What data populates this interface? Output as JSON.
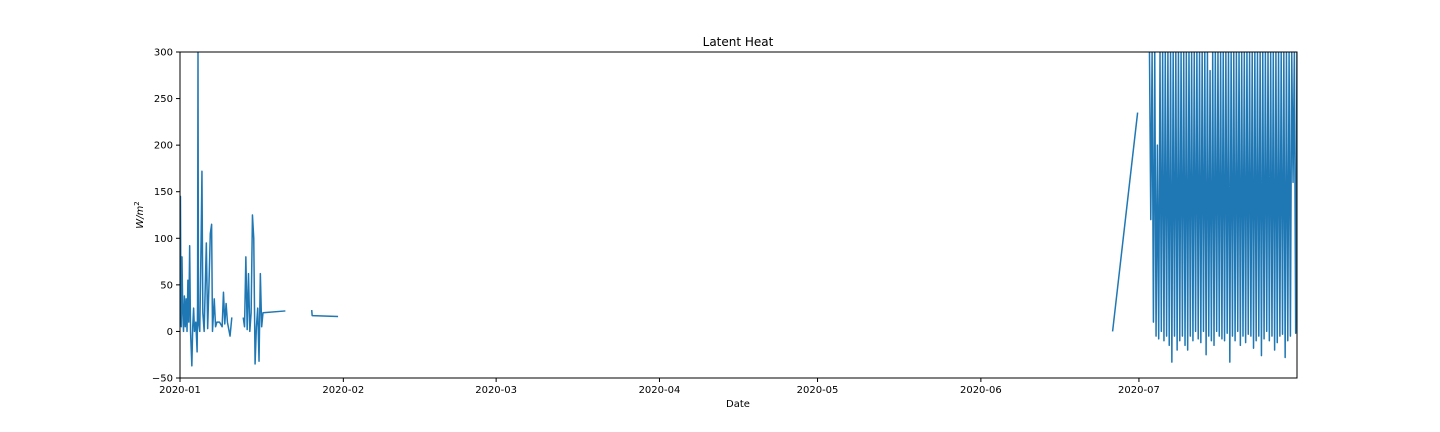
{
  "chart_data": {
    "type": "line",
    "title": "Latent Heat",
    "xlabel": "Date",
    "ylabel_main": "W/m",
    "ylabel_exp": "2",
    "ylim": [
      -50,
      300
    ],
    "xlim": [
      "2020-01-01",
      "2020-07-31"
    ],
    "grid": false,
    "legend": "none",
    "line_color": "#1f77b4",
    "y_ticks": [
      -50,
      0,
      50,
      100,
      150,
      200,
      250,
      300
    ],
    "y_tick_labels": [
      "−50",
      "0",
      "50",
      "100",
      "150",
      "200",
      "250",
      "300"
    ],
    "x_ticks": [
      "2020-01",
      "2020-02",
      "2020-03",
      "2020-04",
      "2020-05",
      "2020-06",
      "2020-07"
    ],
    "series": [
      {
        "values": [
          [
            "2020-01-01T00:00",
            20
          ],
          [
            "2020-01-01T02:00",
            145
          ],
          [
            "2020-01-01T04:00",
            40
          ],
          [
            "2020-01-01T06:00",
            5
          ],
          [
            "2020-01-01T09:00",
            80
          ],
          [
            "2020-01-01T12:00",
            30
          ],
          [
            "2020-01-01T16:00",
            0
          ],
          [
            "2020-01-01T20:00",
            38
          ],
          [
            "2020-01-02T00:00",
            5
          ],
          [
            "2020-01-02T04:00",
            35
          ],
          [
            "2020-01-02T08:00",
            0
          ],
          [
            "2020-01-02T12:00",
            55
          ],
          [
            "2020-01-02T16:00",
            10
          ],
          [
            "2020-01-02T20:00",
            92
          ],
          [
            "2020-01-03T00:00",
            0
          ],
          [
            "2020-01-03T06:00",
            -37
          ],
          [
            "2020-01-03T10:00",
            5
          ],
          [
            "2020-01-03T14:00",
            25
          ],
          [
            "2020-01-03T18:00",
            0
          ],
          [
            "2020-01-04T00:00",
            10
          ],
          [
            "2020-01-04T06:00",
            -22
          ],
          [
            "2020-01-04T08:00",
            30
          ],
          [
            "2020-01-04T10:00",
            300
          ],
          [
            "2020-01-04T12:00",
            10
          ],
          [
            "2020-01-04T18:00",
            0
          ],
          [
            "2020-01-05T00:00",
            95
          ],
          [
            "2020-01-05T04:00",
            172
          ],
          [
            "2020-01-05T08:00",
            20
          ],
          [
            "2020-01-05T14:00",
            0
          ],
          [
            "2020-01-06T00:00",
            95
          ],
          [
            "2020-01-06T06:00",
            3
          ],
          [
            "2020-01-06T12:00",
            50
          ],
          [
            "2020-01-06T18:00",
            105
          ],
          [
            "2020-01-07T00:00",
            115
          ],
          [
            "2020-01-07T04:00",
            0
          ],
          [
            "2020-01-07T12:00",
            35
          ],
          [
            "2020-01-07T18:00",
            5
          ],
          [
            "2020-01-08T00:00",
            10
          ],
          [
            "2020-01-08T12:00",
            10
          ],
          [
            "2020-01-09T00:00",
            5
          ],
          [
            "2020-01-09T06:00",
            42
          ],
          [
            "2020-01-09T12:00",
            8
          ],
          [
            "2020-01-09T18:00",
            30
          ],
          [
            "2020-01-10T00:00",
            10
          ],
          [
            "2020-01-10T12:00",
            -5
          ],
          [
            "2020-01-10T20:00",
            15
          ],
          null,
          [
            "2020-01-13T00:00",
            15
          ],
          [
            "2020-01-13T06:00",
            5
          ],
          [
            "2020-01-13T12:00",
            80
          ],
          [
            "2020-01-13T18:00",
            2
          ],
          [
            "2020-01-14T00:00",
            62
          ],
          [
            "2020-01-14T06:00",
            0
          ],
          [
            "2020-01-14T12:00",
            20
          ],
          [
            "2020-01-14T18:00",
            125
          ],
          [
            "2020-01-15T00:00",
            100
          ],
          [
            "2020-01-15T06:00",
            -35
          ],
          [
            "2020-01-15T12:00",
            5
          ],
          [
            "2020-01-15T18:00",
            25
          ],
          [
            "2020-01-16T00:00",
            -32
          ],
          [
            "2020-01-16T06:00",
            62
          ],
          [
            "2020-01-16T12:00",
            5
          ],
          [
            "2020-01-16T18:00",
            20
          ],
          [
            "2020-01-21T00:00",
            22
          ],
          null,
          [
            "2020-01-26T00:00",
            23
          ],
          [
            "2020-01-26T02:00",
            17
          ],
          [
            "2020-01-31T00:00",
            16
          ],
          null,
          [
            "2020-06-26T00:00",
            0
          ],
          [
            "2020-06-30T18:00",
            235
          ],
          null,
          [
            "2020-07-03T00:00",
            300
          ],
          [
            "2020-07-03T06:00",
            120
          ],
          [
            "2020-07-03T12:00",
            300
          ],
          [
            "2020-07-03T18:00",
            10
          ],
          [
            "2020-07-04T00:00",
            300
          ],
          [
            "2020-07-04T06:00",
            -5
          ],
          [
            "2020-07-04T12:00",
            200
          ],
          [
            "2020-07-04T18:00",
            -8
          ],
          [
            "2020-07-05T00:00",
            300
          ],
          [
            "2020-07-05T06:00",
            0
          ],
          [
            "2020-07-05T12:00",
            300
          ],
          [
            "2020-07-05T18:00",
            -10
          ],
          [
            "2020-07-06T00:00",
            300
          ],
          [
            "2020-07-06T06:00",
            -5
          ],
          [
            "2020-07-06T12:00",
            300
          ],
          [
            "2020-07-06T18:00",
            -15
          ],
          [
            "2020-07-07T00:00",
            300
          ],
          [
            "2020-07-07T06:00",
            -33
          ],
          [
            "2020-07-07T12:00",
            300
          ],
          [
            "2020-07-07T18:00",
            -5
          ],
          [
            "2020-07-08T00:00",
            300
          ],
          [
            "2020-07-08T06:00",
            -20
          ],
          [
            "2020-07-08T12:00",
            300
          ],
          [
            "2020-07-08T18:00",
            -10
          ],
          [
            "2020-07-09T00:00",
            300
          ],
          [
            "2020-07-09T06:00",
            -5
          ],
          [
            "2020-07-09T12:00",
            300
          ],
          [
            "2020-07-09T18:00",
            -15
          ],
          [
            "2020-07-10T00:00",
            300
          ],
          [
            "2020-07-10T06:00",
            -20
          ],
          [
            "2020-07-10T12:00",
            300
          ],
          [
            "2020-07-10T18:00",
            -5
          ],
          [
            "2020-07-11T00:00",
            300
          ],
          [
            "2020-07-11T06:00",
            -10
          ],
          [
            "2020-07-11T12:00",
            300
          ],
          [
            "2020-07-11T18:00",
            0
          ],
          [
            "2020-07-12T00:00",
            300
          ],
          [
            "2020-07-12T06:00",
            -8
          ],
          [
            "2020-07-12T12:00",
            300
          ],
          [
            "2020-07-12T18:00",
            -12
          ],
          [
            "2020-07-13T00:00",
            300
          ],
          [
            "2020-07-13T06:00",
            0
          ],
          [
            "2020-07-13T12:00",
            300
          ],
          [
            "2020-07-13T18:00",
            -25
          ],
          [
            "2020-07-14T00:00",
            300
          ],
          [
            "2020-07-14T06:00",
            -5
          ],
          [
            "2020-07-14T12:00",
            280
          ],
          [
            "2020-07-14T18:00",
            -10
          ],
          [
            "2020-07-15T00:00",
            300
          ],
          [
            "2020-07-15T06:00",
            -15
          ],
          [
            "2020-07-15T12:00",
            300
          ],
          [
            "2020-07-15T18:00",
            0
          ],
          [
            "2020-07-16T00:00",
            300
          ],
          [
            "2020-07-16T06:00",
            -5
          ],
          [
            "2020-07-16T12:00",
            300
          ],
          [
            "2020-07-16T18:00",
            -8
          ],
          [
            "2020-07-17T00:00",
            300
          ],
          [
            "2020-07-17T06:00",
            -10
          ],
          [
            "2020-07-17T12:00",
            300
          ],
          [
            "2020-07-17T18:00",
            -2
          ],
          [
            "2020-07-18T00:00",
            300
          ],
          [
            "2020-07-18T06:00",
            -33
          ],
          [
            "2020-07-18T12:00",
            300
          ],
          [
            "2020-07-18T18:00",
            -5
          ],
          [
            "2020-07-19T00:00",
            300
          ],
          [
            "2020-07-19T06:00",
            -10
          ],
          [
            "2020-07-19T12:00",
            300
          ],
          [
            "2020-07-19T18:00",
            0
          ],
          [
            "2020-07-20T00:00",
            300
          ],
          [
            "2020-07-20T06:00",
            -15
          ],
          [
            "2020-07-20T12:00",
            300
          ],
          [
            "2020-07-20T18:00",
            -5
          ],
          [
            "2020-07-21T00:00",
            300
          ],
          [
            "2020-07-21T06:00",
            -12
          ],
          [
            "2020-07-21T12:00",
            300
          ],
          [
            "2020-07-21T18:00",
            -3
          ],
          [
            "2020-07-22T00:00",
            300
          ],
          [
            "2020-07-22T06:00",
            -5
          ],
          [
            "2020-07-22T12:00",
            300
          ],
          [
            "2020-07-22T18:00",
            -18
          ],
          [
            "2020-07-23T00:00",
            300
          ],
          [
            "2020-07-23T06:00",
            -10
          ],
          [
            "2020-07-23T12:00",
            300
          ],
          [
            "2020-07-23T18:00",
            -5
          ],
          [
            "2020-07-24T00:00",
            300
          ],
          [
            "2020-07-24T06:00",
            -26
          ],
          [
            "2020-07-24T12:00",
            300
          ],
          [
            "2020-07-24T18:00",
            -8
          ],
          [
            "2020-07-25T00:00",
            300
          ],
          [
            "2020-07-25T06:00",
            0
          ],
          [
            "2020-07-25T12:00",
            300
          ],
          [
            "2020-07-25T18:00",
            -10
          ],
          [
            "2020-07-26T00:00",
            300
          ],
          [
            "2020-07-26T06:00",
            -5
          ],
          [
            "2020-07-26T12:00",
            300
          ],
          [
            "2020-07-26T18:00",
            -20
          ],
          [
            "2020-07-27T00:00",
            300
          ],
          [
            "2020-07-27T06:00",
            -12
          ],
          [
            "2020-07-27T12:00",
            300
          ],
          [
            "2020-07-27T18:00",
            -5
          ],
          [
            "2020-07-28T00:00",
            300
          ],
          [
            "2020-07-28T06:00",
            -3
          ],
          [
            "2020-07-28T12:00",
            300
          ],
          [
            "2020-07-28T18:00",
            -28
          ],
          [
            "2020-07-29T00:00",
            300
          ],
          [
            "2020-07-29T06:00",
            -10
          ],
          [
            "2020-07-29T12:00",
            300
          ],
          [
            "2020-07-29T18:00",
            -5
          ],
          [
            "2020-07-30T00:00",
            300
          ],
          [
            "2020-07-30T06:00",
            160
          ],
          [
            "2020-07-30T12:00",
            300
          ],
          [
            "2020-07-30T18:00",
            -2
          ],
          [
            "2020-07-31T00:00",
            300
          ]
        ]
      }
    ]
  }
}
